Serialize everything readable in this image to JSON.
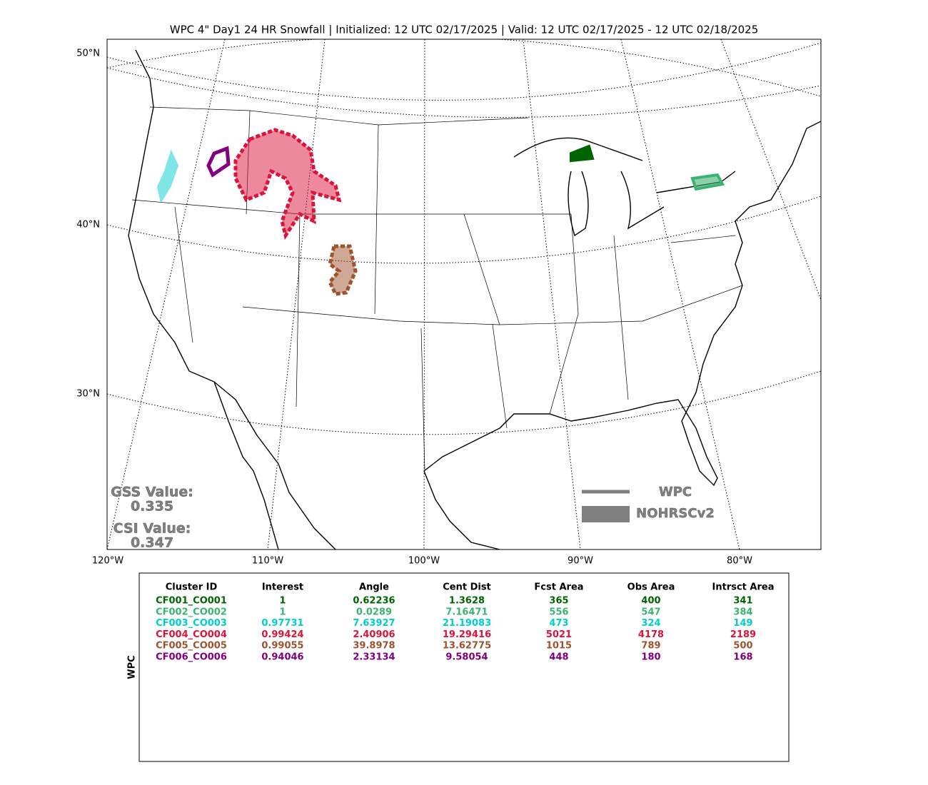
{
  "title": "WPC 4\" Day1 24 HR Snowfall | Initialized: 12 UTC 02/17/2025 | Valid: 12 UTC 02/17/2025 - 12 UTC 02/18/2025",
  "map": {
    "lat_labels": [
      "50°N",
      "40°N",
      "30°N"
    ],
    "lon_labels": [
      "120°W",
      "110°W",
      "100°W",
      "90°W",
      "80°W"
    ],
    "scores": {
      "gss_label": "GSS Value:",
      "gss_value": "0.335",
      "csi_label": "CSI Value:",
      "csi_value": "0.347"
    },
    "legend": {
      "line_label": "WPC",
      "area_label": "NOHRSCv2"
    }
  },
  "table": {
    "side_label": "WPC",
    "header": [
      "Cluster ID",
      "Interest",
      "Angle",
      "Cent Dist",
      "Fcst Area",
      "Obs Area",
      "Intrsct Area"
    ],
    "rows": [
      {
        "color": "#006400",
        "cells": [
          "CF001_CO001",
          "1",
          "0.62236",
          "1.3628",
          "365",
          "400",
          "341"
        ]
      },
      {
        "color": "#3cb371",
        "cells": [
          "CF002_CO002",
          "1",
          "0.0289",
          "7.16471",
          "556",
          "547",
          "384"
        ]
      },
      {
        "color": "#00ced1",
        "cells": [
          "CF003_CO003",
          "0.97731",
          "7.63927",
          "21.19083",
          "473",
          "324",
          "149"
        ]
      },
      {
        "color": "#dc143c",
        "cells": [
          "CF004_CO004",
          "0.99424",
          "2.40906",
          "19.29416",
          "5021",
          "4178",
          "2189"
        ]
      },
      {
        "color": "#a0522d",
        "cells": [
          "CF005_CO005",
          "0.99055",
          "39.8978",
          "13.62775",
          "1015",
          "789",
          "500"
        ]
      },
      {
        "color": "#800080",
        "cells": [
          "CF006_CO006",
          "0.94046",
          "2.33134",
          "9.58054",
          "448",
          "180",
          "168"
        ]
      }
    ]
  }
}
